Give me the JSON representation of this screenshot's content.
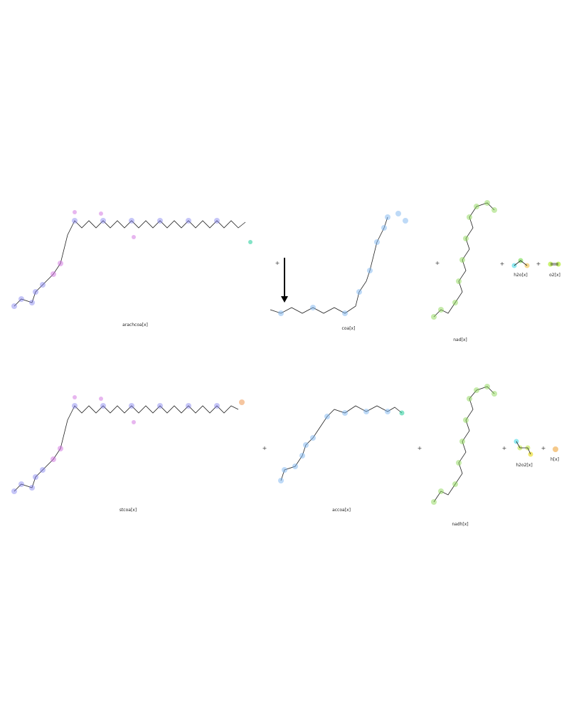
{
  "reaction": {
    "reactants": [
      {
        "id": "arachcoa",
        "label": "arachcoa[x]",
        "color": "#8080f0"
      },
      {
        "id": "coa",
        "label": "coa[x]",
        "color": "#7fb6f0"
      },
      {
        "id": "nad",
        "label": "nad[x]",
        "color": "#8fd85a"
      },
      {
        "id": "h2o",
        "label": "h2o[x]",
        "color": "#8fe8f0"
      },
      {
        "id": "o2",
        "label": "o2[x]",
        "color": "#c8f070"
      }
    ],
    "products": [
      {
        "id": "stcoa",
        "label": "stcoa[x]",
        "color": "#8080f0"
      },
      {
        "id": "accoa",
        "label": "accoa[x]",
        "color": "#7fb6f0"
      },
      {
        "id": "nadh",
        "label": "nadh[x]",
        "color": "#8fd85a"
      },
      {
        "id": "h2o2",
        "label": "h2o2[x]",
        "color": "#f0e870"
      },
      {
        "id": "h",
        "label": "h[x]",
        "color": "#f5c98a"
      }
    ],
    "plus": "+",
    "arrow": "reaction-arrow-down"
  }
}
